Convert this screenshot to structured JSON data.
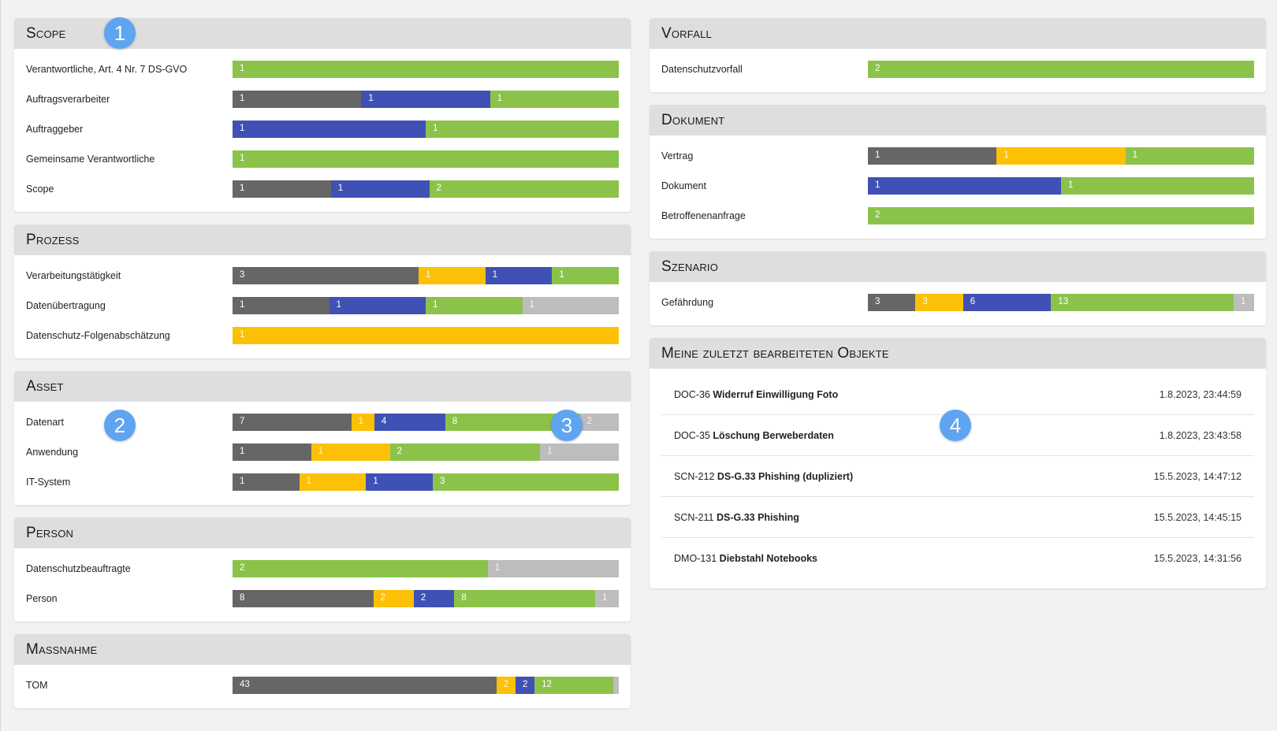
{
  "left_cards": [
    {
      "title": "Scope",
      "rows": [
        {
          "label": "Verantwortliche, Art. 4 Nr. 7 DS-GVO",
          "segments": [
            {
              "value": "1",
              "color": "green"
            }
          ]
        },
        {
          "label": "Auftragsverarbeiter",
          "segments": [
            {
              "value": "1",
              "color": "gray"
            },
            {
              "value": "1",
              "color": "blue"
            },
            {
              "value": "1",
              "color": "green"
            }
          ]
        },
        {
          "label": "Auftraggeber",
          "segments": [
            {
              "value": "1",
              "color": "blue"
            },
            {
              "value": "1",
              "color": "green"
            }
          ]
        },
        {
          "label": "Gemeinsame Verantwortliche",
          "segments": [
            {
              "value": "1",
              "color": "green"
            }
          ]
        },
        {
          "label": "Scope",
          "segments": [
            {
              "value": "1",
              "color": "gray"
            },
            {
              "value": "1",
              "color": "blue"
            },
            {
              "value": "2",
              "color": "green"
            }
          ]
        }
      ]
    },
    {
      "title": "Prozess",
      "rows": [
        {
          "label": "Verarbeitungstätigkeit",
          "segments": [
            {
              "value": "3",
              "color": "gray"
            },
            {
              "value": "1",
              "color": "yellow"
            },
            {
              "value": "1",
              "color": "blue"
            },
            {
              "value": "1",
              "color": "green"
            }
          ]
        },
        {
          "label": "Datenübertragung",
          "segments": [
            {
              "value": "1",
              "color": "gray"
            },
            {
              "value": "1",
              "color": "blue"
            },
            {
              "value": "1",
              "color": "green"
            },
            {
              "value": "1",
              "color": "light"
            }
          ]
        },
        {
          "label": "Datenschutz-Folgenabschätzung",
          "segments": [
            {
              "value": "1",
              "color": "yellow"
            }
          ]
        }
      ]
    },
    {
      "title": "Asset",
      "rows": [
        {
          "label": "Datenart",
          "segments": [
            {
              "value": "7",
              "color": "gray"
            },
            {
              "value": "1",
              "color": "yellow"
            },
            {
              "value": "4",
              "color": "blue"
            },
            {
              "value": "8",
              "color": "green"
            },
            {
              "value": "2",
              "color": "light"
            }
          ]
        },
        {
          "label": "Anwendung",
          "segments": [
            {
              "value": "1",
              "color": "gray"
            },
            {
              "value": "1",
              "color": "yellow"
            },
            {
              "value": "2",
              "color": "green"
            },
            {
              "value": "1",
              "color": "light"
            }
          ]
        },
        {
          "label": "IT-System",
          "segments": [
            {
              "value": "1",
              "color": "gray"
            },
            {
              "value": "1",
              "color": "yellow"
            },
            {
              "value": "1",
              "color": "blue"
            },
            {
              "value": "3",
              "color": "green"
            }
          ]
        }
      ]
    },
    {
      "title": "Person",
      "rows": [
        {
          "label": "Datenschutzbeauftragte",
          "segments": [
            {
              "value": "2",
              "color": "green"
            },
            {
              "value": "1",
              "color": "light"
            }
          ]
        },
        {
          "label": "Person",
          "segments": [
            {
              "value": "8",
              "color": "gray"
            },
            {
              "value": "2",
              "color": "yellow"
            },
            {
              "value": "2",
              "color": "blue"
            },
            {
              "value": "8",
              "color": "green"
            },
            {
              "value": "1",
              "color": "light"
            }
          ]
        }
      ]
    },
    {
      "title": "Maßnahme",
      "rows": [
        {
          "label": "TOM",
          "segments": [
            {
              "value": "43",
              "color": "gray"
            },
            {
              "value": "2",
              "color": "yellow"
            },
            {
              "value": "2",
              "color": "blue"
            },
            {
              "value": "12",
              "color": "green"
            },
            {
              "value": "1",
              "color": "light",
              "hide_label": true
            }
          ]
        }
      ]
    }
  ],
  "right_cards": [
    {
      "title": "Vorfall",
      "rows": [
        {
          "label": "Datenschutzvorfall",
          "segments": [
            {
              "value": "2",
              "color": "green"
            }
          ]
        }
      ]
    },
    {
      "title": "Dokument",
      "rows": [
        {
          "label": "Vertrag",
          "segments": [
            {
              "value": "1",
              "color": "gray"
            },
            {
              "value": "1",
              "color": "yellow"
            },
            {
              "value": "1",
              "color": "green"
            }
          ]
        },
        {
          "label": "Dokument",
          "segments": [
            {
              "value": "1",
              "color": "blue"
            },
            {
              "value": "1",
              "color": "green"
            }
          ]
        },
        {
          "label": "Betroffenenanfrage",
          "segments": [
            {
              "value": "2",
              "color": "green"
            }
          ]
        }
      ]
    },
    {
      "title": "Szenario",
      "rows": [
        {
          "label": "Gefährdung",
          "segments": [
            {
              "value": "3",
              "color": "gray"
            },
            {
              "value": "3",
              "color": "yellow"
            },
            {
              "value": "6",
              "color": "blue"
            },
            {
              "value": "13",
              "color": "green"
            },
            {
              "value": "1",
              "color": "light"
            }
          ]
        }
      ]
    }
  ],
  "recent": {
    "title": "Meine zuletzt bearbeiteten Objekte",
    "items": [
      {
        "id": "DOC-36",
        "name": "Widerruf Einwilligung Foto",
        "date": "1.8.2023, 23:44:59"
      },
      {
        "id": "DOC-35",
        "name": "Löschung Berweberdaten",
        "date": "1.8.2023, 23:43:58"
      },
      {
        "id": "SCN-212",
        "name": "DS-G.33 Phishing (dupliziert)",
        "date": "15.5.2023, 14:47:12"
      },
      {
        "id": "SCN-211",
        "name": "DS-G.33 Phishing",
        "date": "15.5.2023, 14:45:15"
      },
      {
        "id": "DMO-131",
        "name": "Diebstahl Notebooks",
        "date": "15.5.2023, 14:31:56"
      }
    ]
  },
  "markers": [
    "1",
    "2",
    "3",
    "4"
  ],
  "colors": {
    "gray": "#666666",
    "yellow": "#fcc107",
    "blue": "#3f51b5",
    "green": "#8bc34a",
    "light": "#bdbdbd"
  }
}
